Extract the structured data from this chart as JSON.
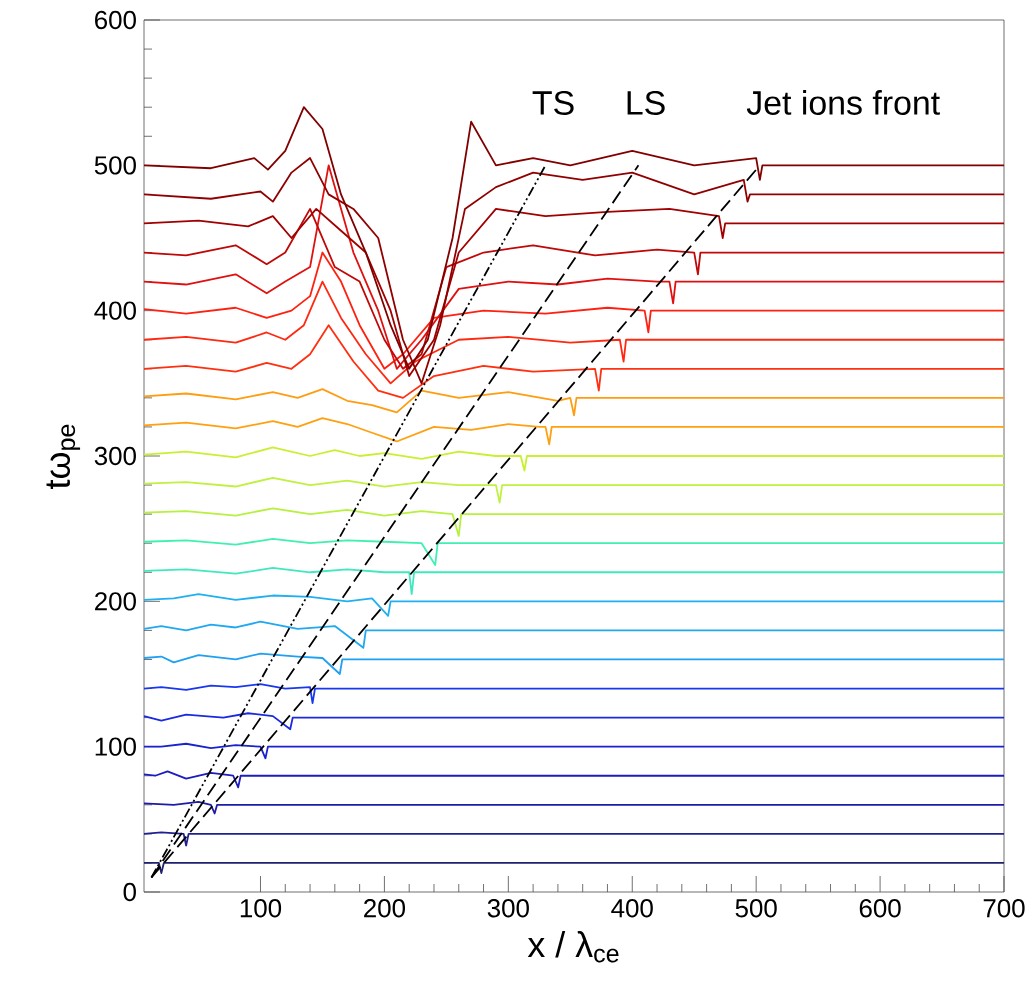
{
  "chart_data": {
    "type": "line",
    "xlabel": "x / λ$_{ce}$",
    "ylabel": "tω$_{pe}$",
    "xlim": [
      6,
      700
    ],
    "ylim": [
      0,
      600
    ],
    "xticks": [
      100,
      200,
      300,
      400,
      500,
      600,
      700
    ],
    "yticks": [
      0,
      100,
      200,
      300,
      400,
      500,
      600
    ],
    "series": [
      {
        "color": "#202070",
        "x": [
          6,
          18,
          20,
          22,
          700
        ],
        "values": [
          20,
          20,
          13,
          20,
          20
        ]
      },
      {
        "color": "#202090",
        "x": [
          6,
          20,
          38,
          40,
          42,
          700
        ],
        "values": [
          40,
          41,
          40,
          32,
          40,
          40
        ]
      },
      {
        "color": "#1c1ca8",
        "x": [
          6,
          30,
          50,
          60,
          63,
          65,
          700
        ],
        "values": [
          61,
          60,
          62,
          60,
          54,
          60,
          60
        ]
      },
      {
        "color": "#1c1cc0",
        "x": [
          6,
          15,
          25,
          40,
          60,
          78,
          82,
          84,
          700
        ],
        "values": [
          81,
          80,
          83,
          78,
          82,
          80,
          72,
          80,
          80
        ]
      },
      {
        "color": "#1a22d0",
        "x": [
          6,
          20,
          40,
          60,
          80,
          100,
          104,
          106,
          700
        ],
        "values": [
          100,
          100,
          102,
          99,
          101,
          100,
          92,
          100,
          100
        ]
      },
      {
        "color": "#1a2ae0",
        "x": [
          6,
          20,
          40,
          70,
          90,
          110,
          124,
          126,
          700
        ],
        "values": [
          121,
          118,
          122,
          120,
          123,
          121,
          112,
          120,
          120
        ]
      },
      {
        "color": "#1838f0",
        "x": [
          6,
          20,
          40,
          60,
          80,
          100,
          120,
          140,
          142,
          144,
          700
        ],
        "values": [
          140,
          141,
          139,
          142,
          141,
          143,
          140,
          141,
          130,
          140,
          140
        ]
      },
      {
        "color": "#20a0f0",
        "x": [
          6,
          20,
          30,
          50,
          80,
          100,
          130,
          150,
          164,
          166,
          700
        ],
        "values": [
          161,
          162,
          158,
          163,
          160,
          164,
          162,
          161,
          150,
          160,
          160
        ]
      },
      {
        "color": "#20a8f0",
        "x": [
          6,
          20,
          40,
          60,
          80,
          100,
          130,
          160,
          183,
          185,
          700
        ],
        "values": [
          181,
          183,
          180,
          184,
          182,
          186,
          181,
          183,
          168,
          180,
          180
        ]
      },
      {
        "color": "#20b0f0",
        "x": [
          6,
          30,
          50,
          80,
          110,
          140,
          170,
          190,
          203,
          205,
          700
        ],
        "values": [
          201,
          202,
          205,
          201,
          204,
          203,
          200,
          202,
          190,
          200,
          200
        ]
      },
      {
        "color": "#40e8c0",
        "x": [
          6,
          40,
          80,
          110,
          140,
          170,
          200,
          220,
          222,
          224,
          700
        ],
        "values": [
          221,
          222,
          219,
          223,
          220,
          222,
          220,
          220,
          205,
          220,
          220
        ]
      },
      {
        "color": "#40f0b0",
        "x": [
          6,
          40,
          80,
          110,
          140,
          170,
          200,
          230,
          241,
          243,
          700
        ],
        "values": [
          241,
          242,
          239,
          243,
          240,
          242,
          241,
          240,
          225,
          240,
          240
        ]
      },
      {
        "color": "#b8f040",
        "x": [
          6,
          40,
          80,
          110,
          140,
          170,
          200,
          230,
          255,
          260,
          262,
          700
        ],
        "values": [
          261,
          262,
          259,
          264,
          260,
          263,
          259,
          262,
          260,
          245,
          260,
          260
        ]
      },
      {
        "color": "#c0f040",
        "x": [
          6,
          40,
          80,
          110,
          140,
          170,
          200,
          230,
          260,
          290,
          293,
          295,
          700
        ],
        "values": [
          281,
          282,
          279,
          285,
          280,
          283,
          279,
          282,
          280,
          280,
          268,
          280,
          280
        ]
      },
      {
        "color": "#c8f030",
        "x": [
          6,
          40,
          80,
          110,
          140,
          160,
          180,
          200,
          230,
          260,
          290,
          310,
          313,
          315,
          700
        ],
        "values": [
          301,
          303,
          299,
          306,
          300,
          304,
          300,
          302,
          298,
          303,
          300,
          300,
          290,
          300,
          300
        ]
      },
      {
        "color": "#ffa010",
        "x": [
          6,
          40,
          80,
          110,
          130,
          150,
          170,
          190,
          210,
          240,
          270,
          300,
          325,
          330,
          333,
          335,
          700
        ],
        "values": [
          321,
          323,
          319,
          324,
          320,
          326,
          322,
          316,
          310,
          320,
          318,
          322,
          320,
          320,
          308,
          320,
          320
        ]
      },
      {
        "color": "#ff9c10",
        "x": [
          6,
          40,
          80,
          110,
          130,
          150,
          170,
          190,
          210,
          230,
          260,
          300,
          340,
          350,
          353,
          355,
          700
        ],
        "values": [
          341,
          343,
          339,
          344,
          340,
          346,
          338,
          335,
          330,
          345,
          340,
          344,
          338,
          340,
          328,
          340,
          340
        ]
      },
      {
        "color": "#ff3010",
        "x": [
          6,
          40,
          80,
          105,
          125,
          140,
          155,
          175,
          195,
          215,
          240,
          280,
          320,
          370,
          373,
          375,
          700
        ],
        "values": [
          360,
          362,
          358,
          364,
          360,
          370,
          390,
          365,
          345,
          340,
          355,
          362,
          358,
          360,
          345,
          360,
          360
        ]
      },
      {
        "color": "#ff2810",
        "x": [
          6,
          40,
          80,
          105,
          120,
          135,
          150,
          165,
          185,
          205,
          225,
          260,
          300,
          350,
          390,
          393,
          395,
          700
        ],
        "values": [
          380,
          382,
          378,
          385,
          380,
          390,
          420,
          395,
          370,
          350,
          365,
          380,
          382,
          378,
          380,
          365,
          380,
          380
        ]
      },
      {
        "color": "#ff2010",
        "x": [
          6,
          40,
          80,
          105,
          125,
          140,
          150,
          165,
          180,
          200,
          215,
          240,
          280,
          330,
          380,
          410,
          413,
          415,
          700
        ],
        "values": [
          401,
          398,
          402,
          395,
          400,
          410,
          440,
          420,
          390,
          360,
          370,
          395,
          400,
          398,
          402,
          400,
          385,
          400,
          400
        ]
      },
      {
        "color": "#e01010",
        "x": [
          6,
          40,
          80,
          105,
          120,
          140,
          155,
          175,
          195,
          210,
          230,
          260,
          300,
          340,
          380,
          420,
          430,
          433,
          435,
          700
        ],
        "values": [
          420,
          418,
          425,
          412,
          420,
          430,
          500,
          440,
          400,
          360,
          380,
          415,
          420,
          418,
          422,
          420,
          420,
          405,
          420,
          420
        ]
      },
      {
        "color": "#c00808",
        "x": [
          6,
          40,
          80,
          105,
          120,
          140,
          160,
          180,
          200,
          215,
          230,
          250,
          280,
          320,
          370,
          420,
          450,
          453,
          455,
          700
        ],
        "values": [
          440,
          438,
          445,
          432,
          440,
          470,
          430,
          420,
          380,
          360,
          370,
          430,
          440,
          445,
          438,
          442,
          440,
          425,
          440,
          440
        ]
      },
      {
        "color": "#a00000",
        "x": [
          6,
          50,
          90,
          110,
          125,
          145,
          165,
          185,
          205,
          220,
          240,
          260,
          290,
          330,
          380,
          430,
          470,
          473,
          475,
          700
        ],
        "values": [
          460,
          462,
          458,
          465,
          450,
          470,
          455,
          440,
          400,
          355,
          380,
          440,
          470,
          465,
          468,
          470,
          465,
          450,
          460,
          460
        ]
      },
      {
        "color": "#900000",
        "x": [
          6,
          60,
          100,
          110,
          125,
          140,
          155,
          175,
          195,
          215,
          230,
          245,
          265,
          290,
          320,
          360,
          400,
          450,
          490,
          493,
          495,
          700
        ],
        "values": [
          480,
          477,
          482,
          475,
          495,
          505,
          480,
          470,
          450,
          380,
          350,
          390,
          470,
          485,
          495,
          490,
          495,
          480,
          490,
          475,
          480,
          480
        ]
      },
      {
        "color": "#800000",
        "x": [
          6,
          60,
          95,
          106,
          120,
          135,
          150,
          165,
          185,
          205,
          220,
          235,
          255,
          270,
          290,
          320,
          350,
          400,
          450,
          500,
          503,
          505,
          700
        ],
        "values": [
          500,
          498,
          505,
          497,
          510,
          540,
          525,
          480,
          440,
          390,
          360,
          380,
          450,
          530,
          500,
          505,
          500,
          510,
          500,
          505,
          490,
          500,
          500
        ]
      },
      {
        "name": "TS",
        "color": "#000000",
        "line_style": "dotted",
        "x": [
          12,
          330
        ],
        "values": [
          10,
          500
        ]
      },
      {
        "name": "LS",
        "color": "#000000",
        "line_style": "dashed",
        "x": [
          12,
          405
        ],
        "values": [
          10,
          500
        ]
      },
      {
        "name": "Jet ions front",
        "color": "#000000",
        "line_style": "dashed",
        "x": [
          12,
          503
        ],
        "values": [
          10,
          500
        ]
      }
    ]
  }
}
